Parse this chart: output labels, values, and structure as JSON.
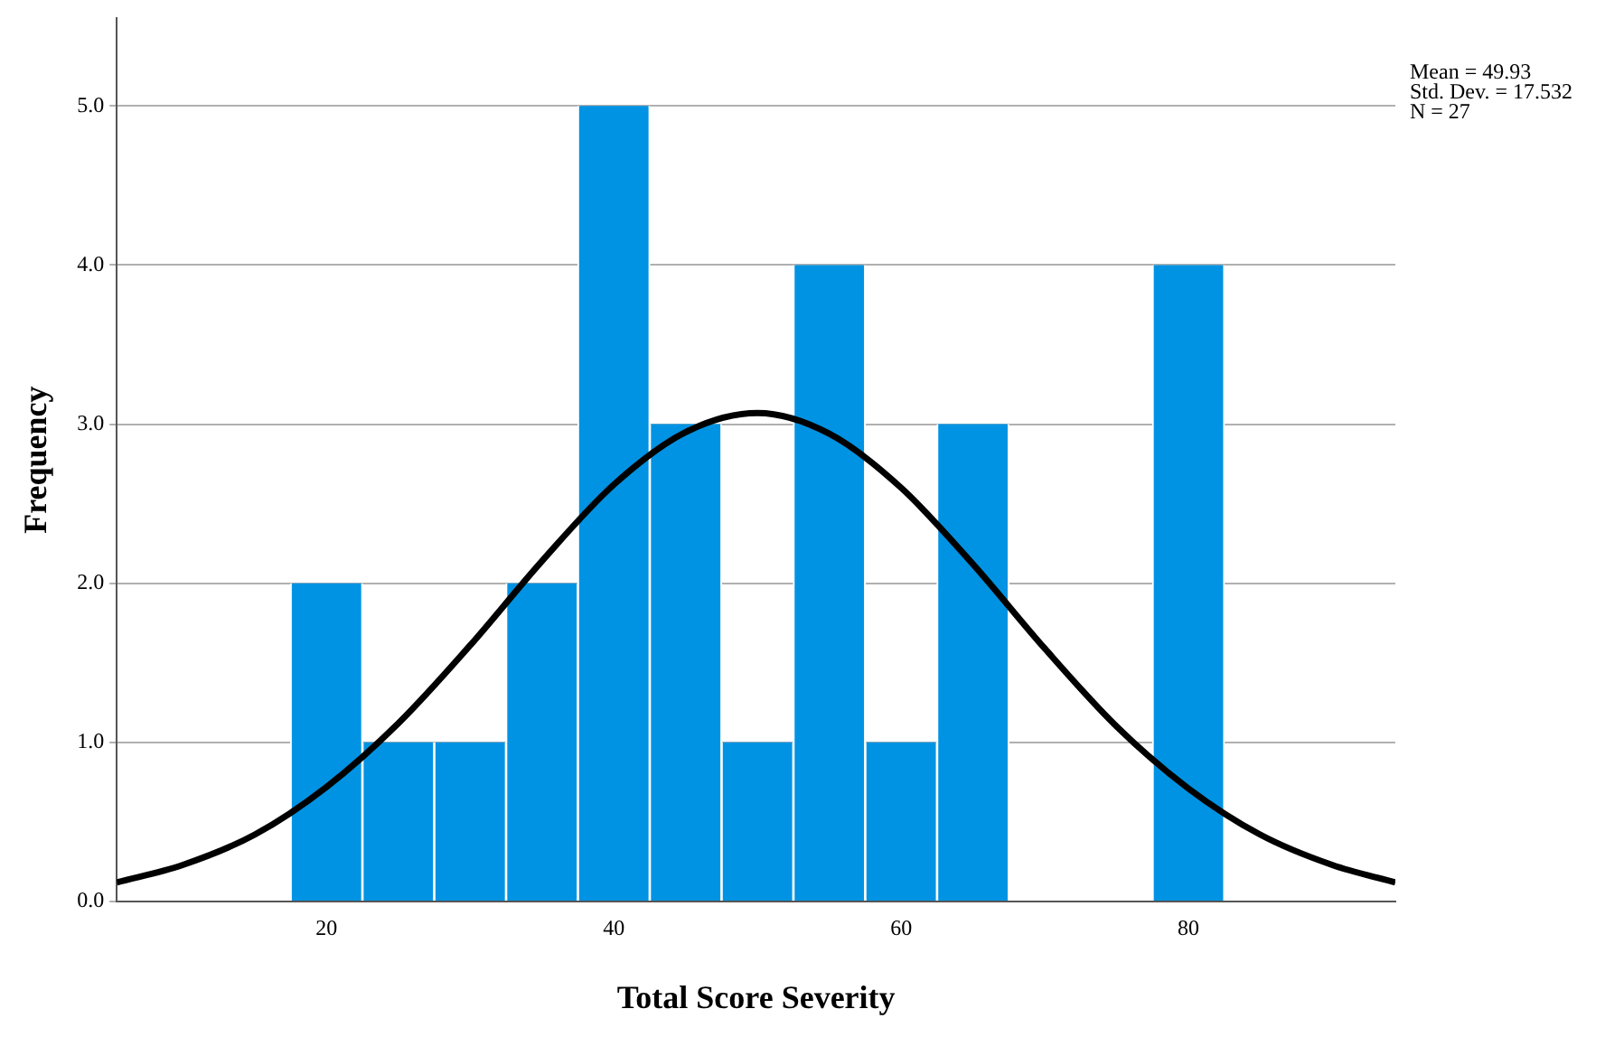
{
  "chart_data": {
    "type": "histogram",
    "xlabel": "Total Score Severity",
    "ylabel": "Frequency",
    "bins": [
      17.5,
      22.5,
      27.5,
      32.5,
      37.5,
      42.5,
      47.5,
      52.5,
      57.5,
      62.5,
      67.5,
      72.5,
      77.5,
      82.5
    ],
    "series": [
      {
        "color": "#0093e3",
        "values": [
          2,
          1,
          1,
          2,
          5,
          3,
          1,
          4,
          1,
          3,
          0,
          0,
          4
        ]
      },
      {
        "type": "line",
        "color": "#000000",
        "x": [
          5.4,
          10,
          15,
          20,
          25,
          30,
          35,
          40,
          45,
          50,
          55,
          60,
          65,
          70,
          75,
          80,
          85,
          90,
          94.4
        ],
        "values": [
          0.12,
          0.23,
          0.42,
          0.72,
          1.12,
          1.61,
          2.14,
          2.62,
          2.95,
          3.07,
          2.94,
          2.6,
          2.12,
          1.59,
          1.1,
          0.71,
          0.42,
          0.23,
          0.12
        ]
      }
    ],
    "xlim": [
      5.4,
      94.4
    ],
    "xticks": [
      20,
      40,
      60,
      80
    ],
    "ylim": [
      0,
      5.55
    ],
    "yticks": [
      {
        "value": 0,
        "label": "0.0"
      },
      {
        "value": 1,
        "label": "1.0"
      },
      {
        "value": 2,
        "label": "2.0"
      },
      {
        "value": 3,
        "label": "3.0"
      },
      {
        "value": 4,
        "label": "4.0"
      },
      {
        "value": 5,
        "label": "5.0"
      }
    ],
    "grid": "y",
    "line_style": "solid",
    "marker": "none",
    "annotations": [
      "Mean = 49.93",
      "Std. Dev. = 17.532",
      "N = 27"
    ]
  }
}
